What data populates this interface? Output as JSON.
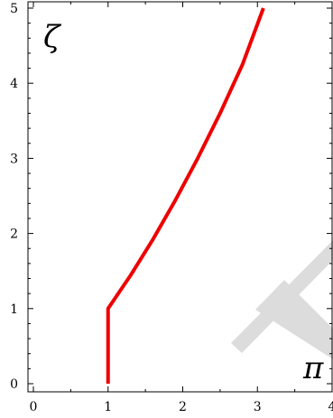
{
  "chart_data": {
    "type": "line",
    "xlabel": "π",
    "ylabel": "ζ",
    "xlim": [
      0,
      4
    ],
    "ylim": [
      0,
      5.1
    ],
    "x_ticks": [
      "0",
      "1",
      "2",
      "3",
      "4"
    ],
    "y_ticks": [
      "0",
      "1",
      "2",
      "3",
      "4",
      "5"
    ],
    "grid": false,
    "series": [
      {
        "color": "#ee0000",
        "points": [
          [
            1.0,
            0.0
          ],
          [
            1.0,
            1.0
          ],
          [
            1.3,
            1.44
          ],
          [
            1.6,
            1.92
          ],
          [
            1.9,
            2.44
          ],
          [
            2.2,
            3.0
          ],
          [
            2.5,
            3.6
          ],
          [
            2.8,
            4.25
          ],
          [
            3.08,
            5.0
          ]
        ]
      }
    ],
    "watermark": {
      "color": "#dcdcdc"
    }
  }
}
